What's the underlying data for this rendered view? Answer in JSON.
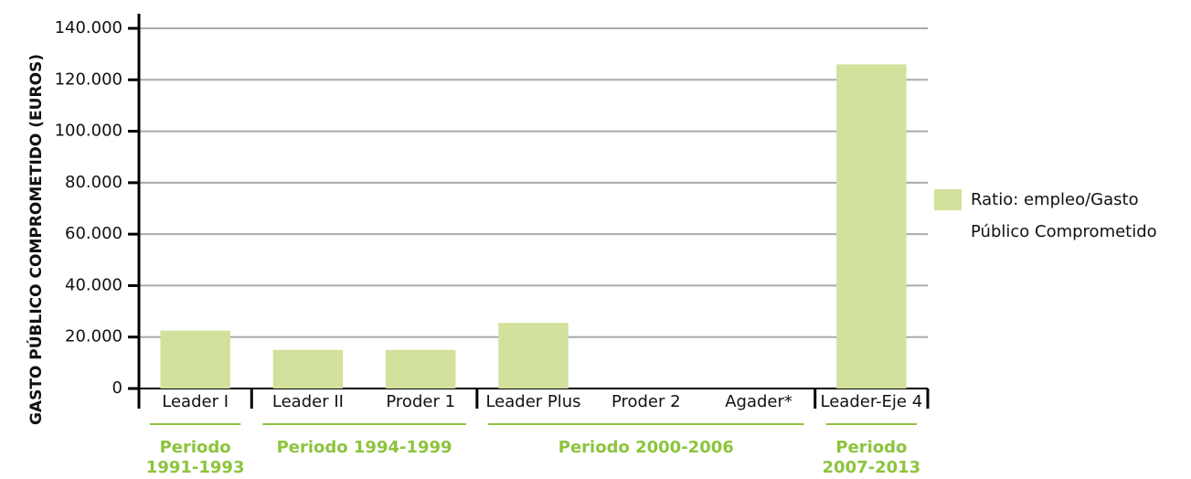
{
  "chart_data": {
    "type": "bar",
    "y_label": "GASTO PÚBLICO COMPROMETIDO (EUROS)",
    "categories": [
      "Leader I",
      "Leader II",
      "Proder 1",
      "Leader Plus",
      "Proder 2",
      "Agader*",
      "Leader-Eje 4"
    ],
    "series": [
      {
        "name": "Ratio: empleo/Gasto Público Comprometido",
        "color": "#d2e19b",
        "values": [
          22500,
          15000,
          15000,
          25500,
          0,
          0,
          126000
        ]
      }
    ],
    "periods": [
      "Periodo 1991-1993",
      "Periodo 1994-1999",
      "Periodo 2000-2006",
      "Periodo 2007-2013"
    ],
    "ylim": [
      0,
      140000
    ],
    "yticks": [
      0,
      {
        "value": 20000,
        "label": "20.000"
      },
      {
        "value": 40000,
        "label": "40.000"
      },
      {
        "value": 60000,
        "label": "60.000"
      },
      {
        "value": 80000,
        "label": "80.000"
      },
      {
        "value": 100000,
        "label": "100.000"
      },
      {
        "value": 120000,
        "label": "120.000"
      },
      {
        "value": 140000,
        "label": "140.000"
      }
    ],
    "grid": true,
    "legend": "right"
  }
}
